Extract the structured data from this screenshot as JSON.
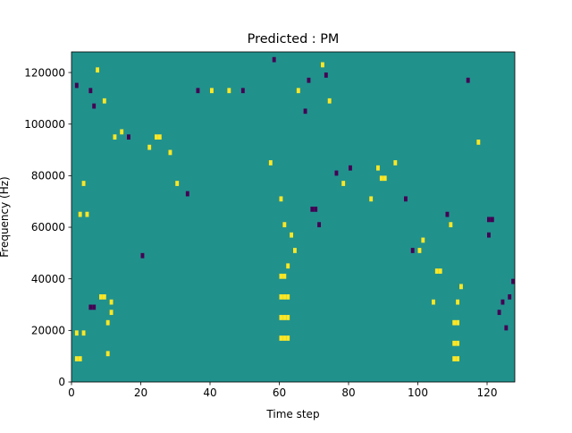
{
  "chart_data": {
    "type": "heatmap",
    "title": "Predicted : PM",
    "xlabel": "Time step",
    "ylabel": "Frequency (Hz)",
    "xlim": [
      0,
      128
    ],
    "ylim": [
      0,
      128000
    ],
    "xticks": [
      0,
      20,
      40,
      60,
      80,
      100,
      120
    ],
    "yticks": [
      0,
      20000,
      40000,
      60000,
      80000,
      100000,
      120000
    ],
    "xtick_labels": [
      "0",
      "20",
      "40",
      "60",
      "80",
      "100",
      "120"
    ],
    "ytick_labels": [
      "0",
      "20000",
      "40000",
      "60000",
      "80000",
      "100000",
      "120000"
    ],
    "grid": false,
    "legend": "none",
    "colormap": "viridis",
    "background_value": 0,
    "level_colors": {
      "-1": "#440154",
      "0": "#21918c",
      "1": "#fde725"
    },
    "cell_width": 1,
    "cell_height": 2000,
    "cells": [
      {
        "x": 1,
        "y": 8000,
        "v": 1
      },
      {
        "x": 2,
        "y": 8000,
        "v": 1
      },
      {
        "x": 1,
        "y": 18000,
        "v": 1
      },
      {
        "x": 3,
        "y": 18000,
        "v": 1
      },
      {
        "x": 5,
        "y": 28000,
        "v": -1
      },
      {
        "x": 6,
        "y": 28000,
        "v": -1
      },
      {
        "x": 8,
        "y": 32000,
        "v": 1
      },
      {
        "x": 9,
        "y": 32000,
        "v": 1
      },
      {
        "x": 10,
        "y": 22000,
        "v": 1
      },
      {
        "x": 10,
        "y": 10000,
        "v": 1
      },
      {
        "x": 11,
        "y": 26000,
        "v": 1
      },
      {
        "x": 11,
        "y": 30000,
        "v": 1
      },
      {
        "x": 2,
        "y": 64000,
        "v": 1
      },
      {
        "x": 4,
        "y": 64000,
        "v": 1
      },
      {
        "x": 3,
        "y": 76000,
        "v": 1
      },
      {
        "x": 1,
        "y": 114000,
        "v": -1
      },
      {
        "x": 5,
        "y": 112000,
        "v": -1
      },
      {
        "x": 6,
        "y": 106000,
        "v": -1
      },
      {
        "x": 7,
        "y": 120000,
        "v": 1
      },
      {
        "x": 9,
        "y": 108000,
        "v": 1
      },
      {
        "x": 12,
        "y": 94000,
        "v": 1
      },
      {
        "x": 14,
        "y": 96000,
        "v": 1
      },
      {
        "x": 16,
        "y": 94000,
        "v": -1
      },
      {
        "x": 20,
        "y": 48000,
        "v": -1
      },
      {
        "x": 22,
        "y": 90000,
        "v": 1
      },
      {
        "x": 24,
        "y": 94000,
        "v": 1
      },
      {
        "x": 25,
        "y": 94000,
        "v": 1
      },
      {
        "x": 28,
        "y": 88000,
        "v": 1
      },
      {
        "x": 30,
        "y": 76000,
        "v": 1
      },
      {
        "x": 33,
        "y": 72000,
        "v": -1
      },
      {
        "x": 36,
        "y": 112000,
        "v": -1
      },
      {
        "x": 40,
        "y": 112000,
        "v": 1
      },
      {
        "x": 45,
        "y": 112000,
        "v": 1
      },
      {
        "x": 49,
        "y": 112000,
        "v": -1
      },
      {
        "x": 57,
        "y": 84000,
        "v": 1
      },
      {
        "x": 58,
        "y": 124000,
        "v": -1
      },
      {
        "x": 60,
        "y": 70000,
        "v": 1
      },
      {
        "x": 61,
        "y": 60000,
        "v": 1
      },
      {
        "x": 60,
        "y": 16000,
        "v": 1
      },
      {
        "x": 61,
        "y": 16000,
        "v": 1
      },
      {
        "x": 60,
        "y": 24000,
        "v": 1
      },
      {
        "x": 61,
        "y": 24000,
        "v": 1
      },
      {
        "x": 60,
        "y": 32000,
        "v": 1
      },
      {
        "x": 61,
        "y": 32000,
        "v": 1
      },
      {
        "x": 60,
        "y": 40000,
        "v": 1
      },
      {
        "x": 61,
        "y": 40000,
        "v": 1
      },
      {
        "x": 62,
        "y": 16000,
        "v": 1
      },
      {
        "x": 62,
        "y": 24000,
        "v": 1
      },
      {
        "x": 62,
        "y": 32000,
        "v": 1
      },
      {
        "x": 62,
        "y": 44000,
        "v": 1
      },
      {
        "x": 63,
        "y": 56000,
        "v": 1
      },
      {
        "x": 64,
        "y": 50000,
        "v": 1
      },
      {
        "x": 65,
        "y": 112000,
        "v": 1
      },
      {
        "x": 67,
        "y": 104000,
        "v": -1
      },
      {
        "x": 68,
        "y": 116000,
        "v": -1
      },
      {
        "x": 69,
        "y": 66000,
        "v": -1
      },
      {
        "x": 70,
        "y": 66000,
        "v": -1
      },
      {
        "x": 71,
        "y": 60000,
        "v": -1
      },
      {
        "x": 72,
        "y": 122000,
        "v": 1
      },
      {
        "x": 73,
        "y": 118000,
        "v": -1
      },
      {
        "x": 74,
        "y": 108000,
        "v": 1
      },
      {
        "x": 76,
        "y": 80000,
        "v": -1
      },
      {
        "x": 78,
        "y": 76000,
        "v": 1
      },
      {
        "x": 80,
        "y": 82000,
        "v": -1
      },
      {
        "x": 86,
        "y": 70000,
        "v": 1
      },
      {
        "x": 88,
        "y": 82000,
        "v": 1
      },
      {
        "x": 89,
        "y": 78000,
        "v": 1
      },
      {
        "x": 90,
        "y": 78000,
        "v": 1
      },
      {
        "x": 93,
        "y": 84000,
        "v": 1
      },
      {
        "x": 96,
        "y": 70000,
        "v": -1
      },
      {
        "x": 98,
        "y": 50000,
        "v": -1
      },
      {
        "x": 100,
        "y": 50000,
        "v": 1
      },
      {
        "x": 101,
        "y": 54000,
        "v": 1
      },
      {
        "x": 104,
        "y": 30000,
        "v": 1
      },
      {
        "x": 105,
        "y": 42000,
        "v": 1
      },
      {
        "x": 106,
        "y": 42000,
        "v": 1
      },
      {
        "x": 108,
        "y": 64000,
        "v": -1
      },
      {
        "x": 109,
        "y": 60000,
        "v": 1
      },
      {
        "x": 110,
        "y": 22000,
        "v": 1
      },
      {
        "x": 111,
        "y": 22000,
        "v": 1
      },
      {
        "x": 110,
        "y": 14000,
        "v": 1
      },
      {
        "x": 111,
        "y": 14000,
        "v": 1
      },
      {
        "x": 110,
        "y": 8000,
        "v": 1
      },
      {
        "x": 111,
        "y": 8000,
        "v": 1
      },
      {
        "x": 111,
        "y": 30000,
        "v": 1
      },
      {
        "x": 112,
        "y": 36000,
        "v": 1
      },
      {
        "x": 114,
        "y": 116000,
        "v": -1
      },
      {
        "x": 117,
        "y": 92000,
        "v": 1
      },
      {
        "x": 120,
        "y": 62000,
        "v": -1
      },
      {
        "x": 120,
        "y": 56000,
        "v": -1
      },
      {
        "x": 121,
        "y": 62000,
        "v": -1
      },
      {
        "x": 123,
        "y": 26000,
        "v": -1
      },
      {
        "x": 124,
        "y": 30000,
        "v": -1
      },
      {
        "x": 125,
        "y": 20000,
        "v": -1
      },
      {
        "x": 126,
        "y": 32000,
        "v": -1
      },
      {
        "x": 127,
        "y": 38000,
        "v": -1
      }
    ]
  }
}
